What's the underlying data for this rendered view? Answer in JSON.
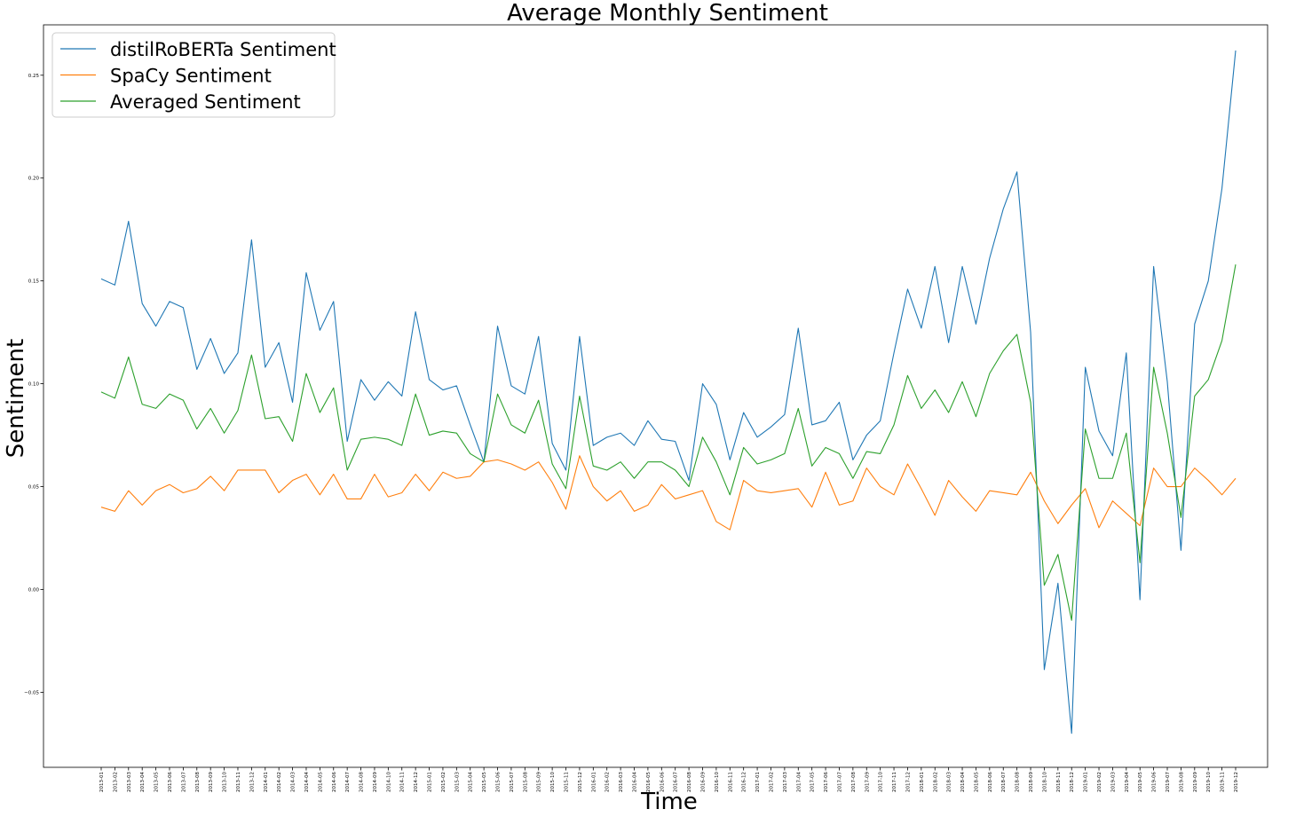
{
  "chart_data": {
    "type": "line",
    "title": "Average Monthly Sentiment",
    "xlabel": "Time",
    "ylabel": "Sentiment",
    "ylim": [
      -0.0865,
      0.2745
    ],
    "yticks": [
      -0.05,
      0.0,
      0.05,
      0.1,
      0.15,
      0.2,
      0.25
    ],
    "ytick_labels": [
      "−0.05",
      "0.00",
      "0.05",
      "0.10",
      "0.15",
      "0.20",
      "0.25"
    ],
    "grid": false,
    "legend_position": "top-left",
    "x": [
      "2013-01",
      "2013-02",
      "2013-03",
      "2013-04",
      "2013-05",
      "2013-06",
      "2013-07",
      "2013-08",
      "2013-09",
      "2013-10",
      "2013-11",
      "2013-12",
      "2014-01",
      "2014-02",
      "2014-03",
      "2014-04",
      "2014-05",
      "2014-06",
      "2014-07",
      "2014-08",
      "2014-09",
      "2014-10",
      "2014-11",
      "2014-12",
      "2015-01",
      "2015-02",
      "2015-03",
      "2015-04",
      "2015-05",
      "2015-06",
      "2015-07",
      "2015-08",
      "2015-09",
      "2015-10",
      "2015-11",
      "2015-12",
      "2016-01",
      "2016-02",
      "2016-03",
      "2016-04",
      "2016-05",
      "2016-06",
      "2016-07",
      "2016-08",
      "2016-09",
      "2016-10",
      "2016-11",
      "2016-12",
      "2017-01",
      "2017-02",
      "2017-03",
      "2017-04",
      "2017-05",
      "2017-06",
      "2017-07",
      "2017-08",
      "2017-09",
      "2017-10",
      "2017-11",
      "2017-12",
      "2018-01",
      "2018-02",
      "2018-03",
      "2018-04",
      "2018-05",
      "2018-06",
      "2018-07",
      "2018-08",
      "2018-09",
      "2018-10",
      "2018-11",
      "2018-12",
      "2019-01",
      "2019-02",
      "2019-03",
      "2019-04",
      "2019-05",
      "2019-06",
      "2019-07",
      "2019-08",
      "2019-09",
      "2019-10",
      "2019-11",
      "2019-12"
    ],
    "series": [
      {
        "name": "distilRoBERTa Sentiment",
        "color": "#1f77b4",
        "values": [
          0.151,
          0.148,
          0.179,
          0.139,
          0.128,
          0.14,
          0.137,
          0.107,
          0.122,
          0.105,
          0.115,
          0.17,
          0.108,
          0.12,
          0.091,
          0.154,
          0.126,
          0.14,
          0.072,
          0.102,
          0.092,
          0.101,
          0.094,
          0.135,
          0.102,
          0.097,
          0.099,
          0.08,
          0.062,
          0.128,
          0.099,
          0.095,
          0.123,
          0.071,
          0.058,
          0.123,
          0.07,
          0.074,
          0.076,
          0.07,
          0.082,
          0.073,
          0.072,
          0.053,
          0.1,
          0.09,
          0.063,
          0.086,
          0.074,
          0.079,
          0.085,
          0.127,
          0.08,
          0.082,
          0.091,
          0.063,
          0.075,
          0.082,
          0.115,
          0.146,
          0.127,
          0.157,
          0.12,
          0.157,
          0.129,
          0.161,
          0.185,
          0.203,
          0.125,
          -0.039,
          0.003,
          -0.07,
          0.108,
          0.077,
          0.065,
          0.115,
          -0.005,
          0.157,
          0.101,
          0.019,
          0.129,
          0.15,
          0.195,
          0.262
        ]
      },
      {
        "name": "SpaCy Sentiment",
        "color": "#ff7f0e",
        "values": [
          0.04,
          0.038,
          0.048,
          0.041,
          0.048,
          0.051,
          0.047,
          0.049,
          0.055,
          0.048,
          0.058,
          0.058,
          0.058,
          0.047,
          0.053,
          0.056,
          0.046,
          0.056,
          0.044,
          0.044,
          0.056,
          0.045,
          0.047,
          0.056,
          0.048,
          0.057,
          0.054,
          0.055,
          0.062,
          0.063,
          0.061,
          0.058,
          0.062,
          0.052,
          0.039,
          0.065,
          0.05,
          0.043,
          0.048,
          0.038,
          0.041,
          0.051,
          0.044,
          0.046,
          0.048,
          0.033,
          0.029,
          0.053,
          0.048,
          0.047,
          0.048,
          0.049,
          0.04,
          0.057,
          0.041,
          0.043,
          0.059,
          0.05,
          0.046,
          0.061,
          0.049,
          0.036,
          0.053,
          0.045,
          0.038,
          0.048,
          0.047,
          0.046,
          0.057,
          0.043,
          0.032,
          0.041,
          0.049,
          0.03,
          0.043,
          0.037,
          0.031,
          0.059,
          0.05,
          0.05,
          0.059,
          0.053,
          0.046,
          0.054
        ]
      },
      {
        "name": "Averaged Sentiment",
        "color": "#2ca02c",
        "values": [
          0.096,
          0.093,
          0.113,
          0.09,
          0.088,
          0.095,
          0.092,
          0.078,
          0.088,
          0.076,
          0.087,
          0.114,
          0.083,
          0.084,
          0.072,
          0.105,
          0.086,
          0.098,
          0.058,
          0.073,
          0.074,
          0.073,
          0.07,
          0.095,
          0.075,
          0.077,
          0.076,
          0.066,
          0.062,
          0.095,
          0.08,
          0.076,
          0.092,
          0.061,
          0.049,
          0.094,
          0.06,
          0.058,
          0.062,
          0.054,
          0.062,
          0.062,
          0.058,
          0.05,
          0.074,
          0.062,
          0.046,
          0.069,
          0.061,
          0.063,
          0.066,
          0.088,
          0.06,
          0.069,
          0.066,
          0.054,
          0.067,
          0.066,
          0.08,
          0.104,
          0.088,
          0.097,
          0.086,
          0.101,
          0.084,
          0.105,
          0.116,
          0.124,
          0.091,
          0.002,
          0.017,
          -0.015,
          0.078,
          0.054,
          0.054,
          0.076,
          0.013,
          0.108,
          0.076,
          0.035,
          0.094,
          0.102,
          0.121,
          0.158
        ]
      }
    ]
  }
}
